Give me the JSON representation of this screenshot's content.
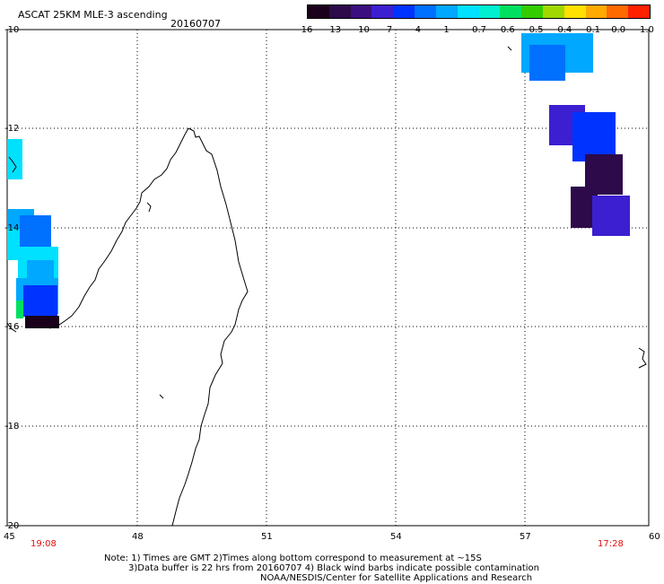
{
  "header": {
    "title": "ASCAT 25KM MLE-3 ascending",
    "date": "20160707"
  },
  "colorbar": {
    "labels": [
      "-16",
      "-13",
      "-10",
      "-7",
      "-4",
      "-1",
      "-0.7",
      "-0.6",
      "-0.5",
      "-0.4",
      "-0.1",
      "0.0",
      "1.0"
    ],
    "colors": [
      "#1a001a",
      "#2d0a4a",
      "#3c0f80",
      "#3c1fd0",
      "#0033ff",
      "#0070ff",
      "#00a8ff",
      "#00e0ff",
      "#00f0d0",
      "#00e060",
      "#33cc00",
      "#a0d800",
      "#ffe000",
      "#ffaa00",
      "#ff6a00",
      "#ff2000"
    ]
  },
  "axes": {
    "lat_labels": [
      "-10",
      "-12",
      "-14",
      "-16",
      "-18",
      "-20"
    ],
    "lon_labels": [
      "45",
      "48",
      "51",
      "54",
      "57",
      "60"
    ]
  },
  "times": {
    "left": "19:08",
    "right": "17:28"
  },
  "notes": {
    "line1": "Note: 1) Times are GMT 2)Times along bottom correspond to measurement at ~15S",
    "line2": "3)Data buffer is 22 hrs from 20160707 4) Black wind barbs indicate possible contamination",
    "line3": "NOAA/NESDIS/Center for Satellite Applications and Research"
  }
}
